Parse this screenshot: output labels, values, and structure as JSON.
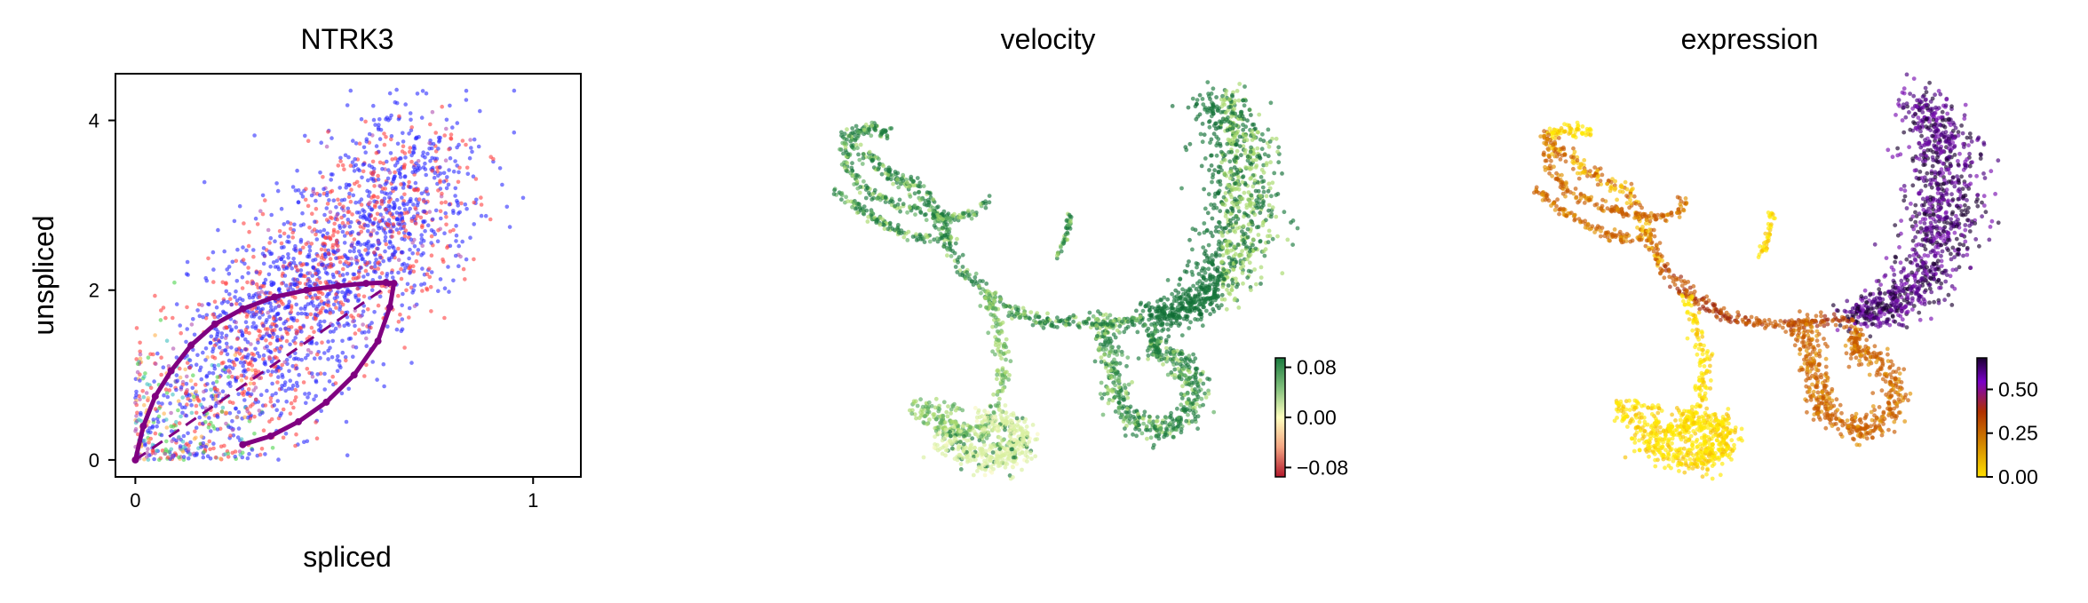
{
  "chart_data": [
    {
      "type": "scatter",
      "title": "NTRK3",
      "xlabel": "spliced",
      "ylabel": "unspliced",
      "xlim": [
        -0.05,
        1.12
      ],
      "ylim": [
        -0.2,
        4.55
      ],
      "xticks": [
        "0",
        "1"
      ],
      "yticks": [
        "0",
        "2",
        "4"
      ],
      "xtick_values": [
        0,
        1
      ],
      "ytick_values": [
        0,
        2,
        4
      ],
      "grid": false,
      "legend": "none",
      "point_colors": [
        "#ff4040",
        "#2b2bff",
        "#4dd44d",
        "#b050b0",
        "#ffb04d",
        "#40c0c0"
      ],
      "series": [
        {
          "style": "dashed",
          "color": "#800080",
          "x": [
            0,
            0.65
          ],
          "y": [
            0,
            2.1
          ]
        },
        {
          "style": "line-with-markers",
          "color": "#800080",
          "x": [
            0.0,
            0.02,
            0.05,
            0.09,
            0.14,
            0.2,
            0.27,
            0.35,
            0.43,
            0.51,
            0.58,
            0.63,
            0.65,
            0.64,
            0.61,
            0.55,
            0.48,
            0.41,
            0.34,
            0.27
          ],
          "y": [
            0.0,
            0.4,
            0.75,
            1.05,
            1.35,
            1.6,
            1.78,
            1.92,
            2.0,
            2.05,
            2.08,
            2.09,
            2.08,
            1.8,
            1.4,
            1.0,
            0.68,
            0.45,
            0.28,
            0.18
          ]
        }
      ]
    },
    {
      "type": "scatter",
      "title": "velocity",
      "colorbar": {
        "ticks": [
          "0.08",
          "0.00",
          "−0.08"
        ],
        "tick_values": [
          0.08,
          0.0,
          -0.08
        ],
        "range": [
          -0.095,
          0.095
        ],
        "colormap": [
          "#b2182b",
          "#ffffbf",
          "#1a7a3e"
        ]
      }
    },
    {
      "type": "scatter",
      "title": "expression",
      "colorbar": {
        "ticks": [
          "0.50",
          "0.25",
          "0.00"
        ],
        "tick_values": [
          0.5,
          0.25,
          0.0
        ],
        "range": [
          0.0,
          0.68
        ],
        "colormap": [
          "#ffe000",
          "#d08000",
          "#b03000",
          "#7a00c8",
          "#1a0030"
        ]
      }
    }
  ]
}
